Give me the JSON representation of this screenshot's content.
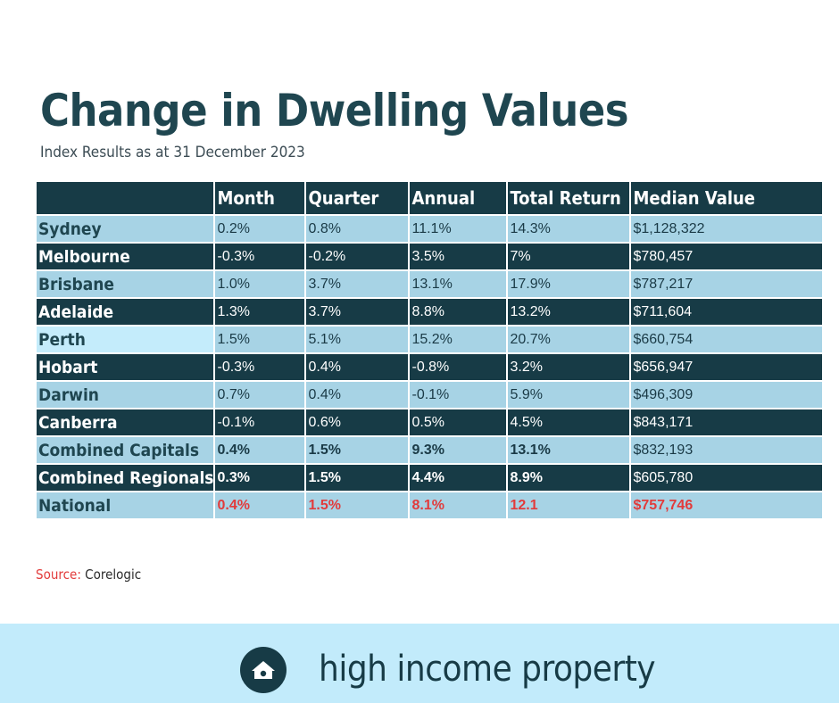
{
  "title": "Change in Dwelling Values",
  "subtitle": "Index Results as at 31 December 2023",
  "table": {
    "columns": [
      "",
      "Month",
      "Quarter",
      "Annual",
      "Total Return",
      "Median Value"
    ],
    "rows": [
      {
        "name": "Sydney",
        "month": "0.2%",
        "quarter": "0.8%",
        "annual": "11.1%",
        "total_return": "14.3%",
        "median_value": "$1,128,322"
      },
      {
        "name": "Melbourne",
        "month": "-0.3%",
        "quarter": "-0.2%",
        "annual": "3.5%",
        "total_return": "7%",
        "median_value": "$780,457"
      },
      {
        "name": "Brisbane",
        "month": "1.0%",
        "quarter": "3.7%",
        "annual": "13.1%",
        "total_return": "17.9%",
        "median_value": "$787,217"
      },
      {
        "name": "Adelaide",
        "month": "1.3%",
        "quarter": "3.7%",
        "annual": "8.8%",
        "total_return": "13.2%",
        "median_value": "$711,604"
      },
      {
        "name": "Perth",
        "month": "1.5%",
        "quarter": "5.1%",
        "annual": "15.2%",
        "total_return": "20.7%",
        "median_value": "$660,754"
      },
      {
        "name": "Hobart",
        "month": "-0.3%",
        "quarter": "0.4%",
        "annual": "-0.8%",
        "total_return": "3.2%",
        "median_value": "$656,947"
      },
      {
        "name": "Darwin",
        "month": "0.7%",
        "quarter": "0.4%",
        "annual": "-0.1%",
        "total_return": "5.9%",
        "median_value": "$496,309"
      },
      {
        "name": "Canberra",
        "month": "-0.1%",
        "quarter": "0.6%",
        "annual": "0.5%",
        "total_return": "4.5%",
        "median_value": "$843,171"
      },
      {
        "name": "Combined Capitals",
        "month": "0.4%",
        "quarter": "1.5%",
        "annual": "9.3%",
        "total_return": "13.1%",
        "median_value": "$832,193"
      },
      {
        "name": "Combined Regionals",
        "month": "0.3%",
        "quarter": "1.5%",
        "annual": "4.4%",
        "total_return": "8.9%",
        "median_value": "$605,780"
      },
      {
        "name": "National",
        "month": "0.4%",
        "quarter": "1.5%",
        "annual": "8.1%",
        "total_return": "12.1",
        "median_value": "$757,746"
      }
    ]
  },
  "source": {
    "label": "Source:",
    "value": "Corelogic"
  },
  "footer": {
    "brand": "high income property",
    "logo_icon": "house-icon"
  },
  "colors": {
    "title": "#1f4650",
    "dark_row": "#173b46",
    "light_row": "#a7d3e5",
    "highlight_cell": "#c4ecfb",
    "accent_red": "#e23b3b",
    "footer_bg": "#c2ebfb"
  }
}
